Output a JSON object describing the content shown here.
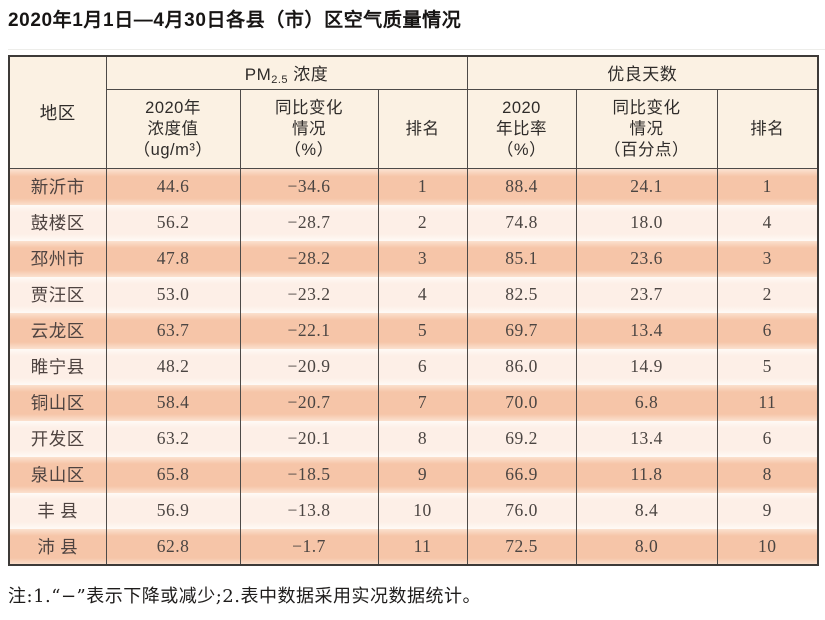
{
  "title": "2020年1月1日—4月30日各县（市）区空气质量情况",
  "footnote": "注:1.“−”表示下降或减少;2.表中数据采用实况数据统计。",
  "colors": {
    "row_strong": "#f6c5a8",
    "row_light": "#fdefe7",
    "header_bg": "#fbf1e3",
    "border_dark": "#3d3a38",
    "grid": "#4d4a48",
    "text_body": "#4b4542"
  },
  "table": {
    "region_header": "地区",
    "pm_group": {
      "prefix": "PM",
      "sub": "2.5",
      "suffix": " 浓度"
    },
    "good_days_group": "优良天数",
    "sub_headers": {
      "pm_value": "2020年\n浓度值\n（ug/m³）",
      "pm_change": "同比变化\n情况\n（%）",
      "pm_rank": "排名",
      "ratio": "2020\n年比率\n（%）",
      "ratio_change": "同比变化\n情况\n（百分点）",
      "ratio_rank": "排名"
    },
    "rows": [
      {
        "region": "新沂市",
        "pm_value": "44.6",
        "pm_change": "−34.6",
        "pm_rank": "1",
        "ratio": "88.4",
        "ratio_change": "24.1",
        "ratio_rank": "1"
      },
      {
        "region": "鼓楼区",
        "pm_value": "56.2",
        "pm_change": "−28.7",
        "pm_rank": "2",
        "ratio": "74.8",
        "ratio_change": "18.0",
        "ratio_rank": "4"
      },
      {
        "region": "邳州市",
        "pm_value": "47.8",
        "pm_change": "−28.2",
        "pm_rank": "3",
        "ratio": "85.1",
        "ratio_change": "23.6",
        "ratio_rank": "3"
      },
      {
        "region": "贾汪区",
        "pm_value": "53.0",
        "pm_change": "−23.2",
        "pm_rank": "4",
        "ratio": "82.5",
        "ratio_change": "23.7",
        "ratio_rank": "2"
      },
      {
        "region": "云龙区",
        "pm_value": "63.7",
        "pm_change": "−22.1",
        "pm_rank": "5",
        "ratio": "69.7",
        "ratio_change": "13.4",
        "ratio_rank": "6"
      },
      {
        "region": "睢宁县",
        "pm_value": "48.2",
        "pm_change": "−20.9",
        "pm_rank": "6",
        "ratio": "86.0",
        "ratio_change": "14.9",
        "ratio_rank": "5"
      },
      {
        "region": "铜山区",
        "pm_value": "58.4",
        "pm_change": "−20.7",
        "pm_rank": "7",
        "ratio": "70.0",
        "ratio_change": "6.8",
        "ratio_rank": "11"
      },
      {
        "region": "开发区",
        "pm_value": "63.2",
        "pm_change": "−20.1",
        "pm_rank": "8",
        "ratio": "69.2",
        "ratio_change": "13.4",
        "ratio_rank": "6"
      },
      {
        "region": "泉山区",
        "pm_value": "65.8",
        "pm_change": "−18.5",
        "pm_rank": "9",
        "ratio": "66.9",
        "ratio_change": "11.8",
        "ratio_rank": "8"
      },
      {
        "region": "丰 县",
        "pm_value": "56.9",
        "pm_change": "−13.8",
        "pm_rank": "10",
        "ratio": "76.0",
        "ratio_change": "8.4",
        "ratio_rank": "9"
      },
      {
        "region": "沛 县",
        "pm_value": "62.8",
        "pm_change": "−1.7",
        "pm_rank": "11",
        "ratio": "72.5",
        "ratio_change": "8.0",
        "ratio_rank": "10"
      }
    ]
  }
}
